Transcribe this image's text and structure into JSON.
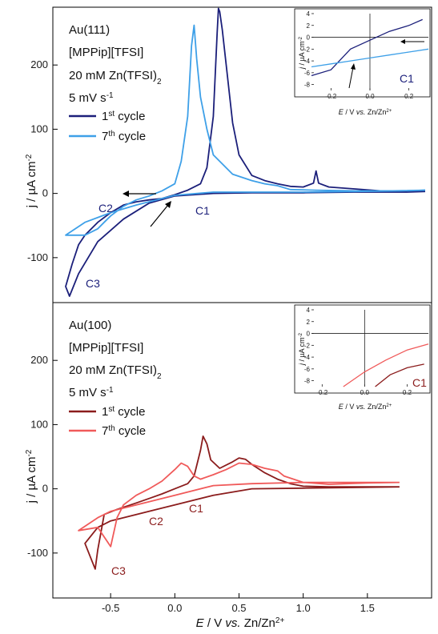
{
  "chart_data": [
    {
      "type": "line",
      "title": "",
      "xlabel": "E / V vs. Zn/Zn2+",
      "ylabel": "j / µA cm-2",
      "xlim": [
        -0.95,
        2.0
      ],
      "ylim": [
        -170,
        290
      ],
      "yticks": [
        -100,
        0,
        100,
        200
      ],
      "legend_lines": [
        "Au(111)",
        "[MPPip][TFSI]",
        "20 mM Zn(TFSI)2",
        "5 mV s-1"
      ],
      "colors": {
        "c1": "#1b1f7a",
        "c7": "#3ea0e8"
      },
      "series": [
        {
          "name": "1st cycle",
          "color": "#1b1f7a",
          "x": [
            1.95,
            1.8,
            1.6,
            1.4,
            1.2,
            1.12,
            1.1,
            1.08,
            1.0,
            0.9,
            0.8,
            0.7,
            0.6,
            0.5,
            0.45,
            0.4,
            0.37,
            0.35,
            0.34,
            0.33,
            0.3,
            0.25,
            0.2,
            0.1,
            0.0,
            -0.1,
            -0.2,
            -0.3,
            -0.4,
            -0.5,
            -0.6,
            -0.7,
            -0.75,
            -0.8,
            -0.85,
            -0.82,
            -0.75,
            -0.6,
            -0.4,
            -0.2,
            0.0,
            0.3,
            0.6,
            1.0,
            1.4,
            1.8,
            1.95
          ],
          "y": [
            3,
            3,
            4,
            7,
            10,
            16,
            35,
            16,
            10,
            11,
            15,
            20,
            28,
            60,
            110,
            200,
            255,
            283,
            288,
            250,
            120,
            40,
            15,
            5,
            -2,
            -8,
            -10,
            -13,
            -18,
            -30,
            -45,
            -65,
            -80,
            -110,
            -145,
            -160,
            -125,
            -75,
            -40,
            -15,
            -4,
            0,
            1,
            1,
            2,
            2,
            3
          ]
        },
        {
          "name": "7th cycle",
          "color": "#3ea0e8",
          "x": [
            1.95,
            1.7,
            1.4,
            1.1,
            0.9,
            0.8,
            0.7,
            0.6,
            0.45,
            0.3,
            0.25,
            0.2,
            0.17,
            0.15,
            0.13,
            0.1,
            0.05,
            0.0,
            -0.1,
            -0.2,
            -0.3,
            -0.4,
            -0.5,
            -0.55,
            -0.6,
            -0.7,
            -0.85,
            -0.7,
            -0.5,
            -0.3,
            0.0,
            0.3,
            0.6,
            1.0,
            1.4,
            1.8,
            1.95
          ],
          "y": [
            5,
            4,
            4,
            5,
            6,
            12,
            15,
            20,
            30,
            60,
            100,
            150,
            210,
            262,
            230,
            120,
            50,
            15,
            4,
            -4,
            -10,
            -20,
            -35,
            -45,
            -55,
            -65,
            -65,
            -45,
            -30,
            -18,
            -3,
            2,
            2,
            2,
            3,
            4,
            5
          ]
        }
      ],
      "annotations": [
        "C1",
        "C2",
        "C3"
      ],
      "inset": {
        "xlabel": "E / V vs. Zn/Zn2+",
        "ylabel": "j / µA cm-2",
        "xlim": [
          -0.3,
          0.3
        ],
        "ylim": [
          -9,
          4
        ],
        "xticks": [
          -0.2,
          0.0,
          0.2
        ],
        "yticks": [
          4,
          2,
          0,
          -2,
          -4,
          -6,
          -8
        ],
        "annotation": "C1",
        "series": [
          {
            "name": "1st cycle",
            "x": [
              -0.3,
              -0.2,
              -0.1,
              0.0,
              0.1,
              0.2,
              0.27
            ],
            "y": [
              -6.5,
              -5.5,
              -2,
              -0.5,
              1,
              2,
              3
            ]
          },
          {
            "name": "7th cycle",
            "x": [
              -0.3,
              -0.2,
              -0.1,
              0.0,
              0.1,
              0.2,
              0.3
            ],
            "y": [
              -5,
              -4.5,
              -4,
              -3.5,
              -3,
              -2.5,
              -2
            ]
          }
        ]
      }
    },
    {
      "type": "line",
      "title": "",
      "xlabel": "E / V vs. Zn/Zn2+",
      "ylabel": "j / µA cm-2",
      "xlim": [
        -0.95,
        2.0
      ],
      "ylim": [
        -170,
        290
      ],
      "xticks": [
        -0.5,
        0.0,
        0.5,
        1.0,
        1.5
      ],
      "yticks": [
        -100,
        0,
        100,
        200
      ],
      "legend_lines": [
        "Au(100)",
        "[MPPip][TFSI]",
        "20 mM Zn(TFSI)2",
        "5 mV s-1"
      ],
      "colors": {
        "c1": "#8b1c1c",
        "c7": "#f05a5a"
      },
      "series": [
        {
          "name": "1st cycle",
          "color": "#8b1c1c",
          "x": [
            1.75,
            1.5,
            1.2,
            1.0,
            0.9,
            0.8,
            0.7,
            0.6,
            0.55,
            0.5,
            0.45,
            0.35,
            0.28,
            0.25,
            0.22,
            0.2,
            0.15,
            0.1,
            0.0,
            -0.1,
            -0.2,
            -0.3,
            -0.45,
            -0.55,
            -0.6,
            -0.62,
            -0.7,
            -0.6,
            -0.5,
            -0.3,
            0.0,
            0.3,
            0.6,
            1.0,
            1.4,
            1.75
          ],
          "y": [
            3,
            3,
            3,
            4,
            8,
            15,
            25,
            38,
            46,
            48,
            42,
            32,
            45,
            70,
            82,
            60,
            20,
            8,
            0,
            -8,
            -15,
            -22,
            -32,
            -40,
            -95,
            -125,
            -85,
            -60,
            -50,
            -40,
            -25,
            -10,
            0,
            1,
            2,
            3
          ]
        },
        {
          "name": "7th cycle",
          "color": "#f05a5a",
          "x": [
            1.75,
            1.5,
            1.2,
            1.0,
            0.85,
            0.8,
            0.7,
            0.6,
            0.5,
            0.4,
            0.3,
            0.2,
            0.15,
            0.1,
            0.05,
            0.0,
            -0.1,
            -0.2,
            -0.3,
            -0.4,
            -0.45,
            -0.5,
            -0.6,
            -0.75,
            -0.6,
            -0.5,
            -0.3,
            0.0,
            0.3,
            0.6,
            1.0,
            1.4,
            1.75
          ],
          "y": [
            10,
            9,
            7,
            10,
            20,
            28,
            32,
            38,
            40,
            30,
            22,
            15,
            20,
            35,
            40,
            30,
            12,
            0,
            -10,
            -25,
            -45,
            -90,
            -60,
            -65,
            -45,
            -35,
            -25,
            -10,
            5,
            8,
            10,
            10,
            10
          ]
        }
      ],
      "annotations": [
        "C1",
        "C2",
        "C3"
      ],
      "inset": {
        "xlabel": "E / V vs. Zn/Zn2+",
        "ylabel": "j / µA cm-2",
        "xlim": [
          -0.25,
          0.3
        ],
        "ylim": [
          -9,
          4
        ],
        "xticks": [
          -0.2,
          0.0,
          0.2
        ],
        "yticks": [
          4,
          2,
          0,
          -2,
          -4,
          -6,
          -8
        ],
        "annotation": "C1",
        "series": [
          {
            "name": "1st cycle",
            "x": [
              0.05,
              0.12,
              0.2,
              0.28
            ],
            "y": [
              -9,
              -7,
              -5.8,
              -5.2
            ]
          },
          {
            "name": "7th cycle",
            "x": [
              -0.1,
              0.0,
              0.1,
              0.2,
              0.3
            ],
            "y": [
              -9,
              -6.5,
              -4.5,
              -2.8,
              -1.8
            ]
          }
        ]
      }
    }
  ]
}
